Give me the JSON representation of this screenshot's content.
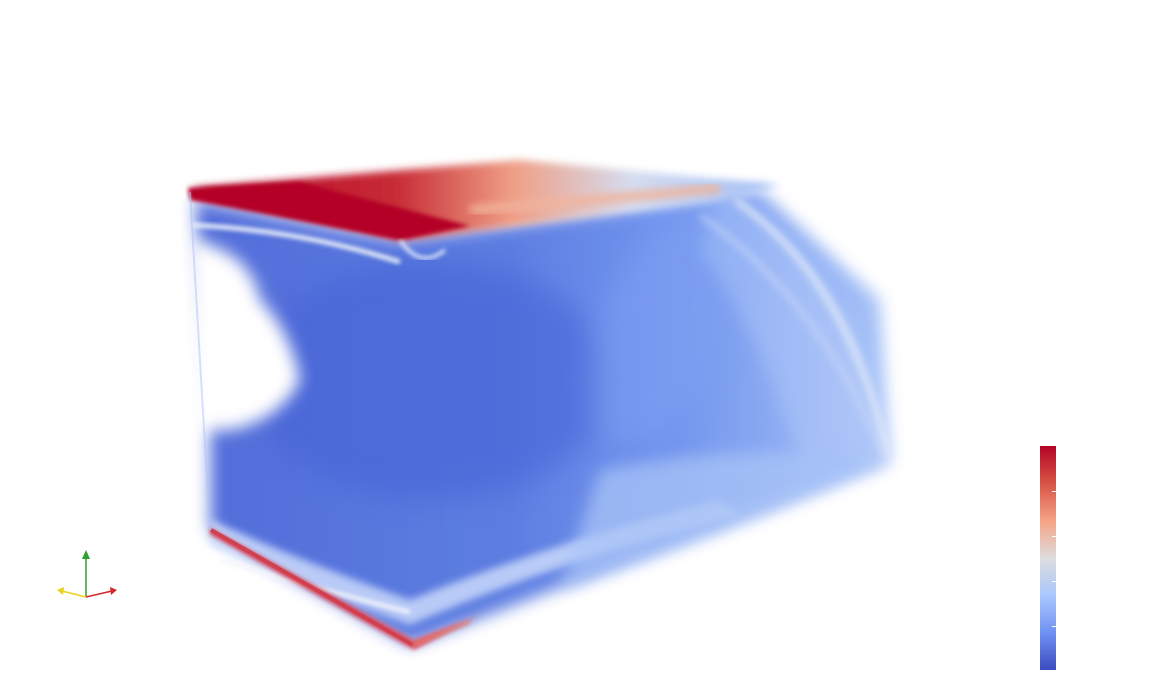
{
  "viewport": {
    "background": "#ffffff",
    "render_type": "volume-render"
  },
  "orientation_axes": {
    "x_axis_color": "#d62728",
    "y_axis_color": "#2ca02c",
    "z_axis_color": "#e5d21a",
    "x_label": "",
    "y_label": "",
    "z_label": ""
  },
  "colormap": {
    "name": "cool-to-warm",
    "stops": [
      "#3b4cc0",
      "#6f92f3",
      "#aac7fd",
      "#dddddd",
      "#f6a385",
      "#d75445",
      "#b40426"
    ],
    "tick_count": 4,
    "title": "",
    "tick_labels": []
  }
}
